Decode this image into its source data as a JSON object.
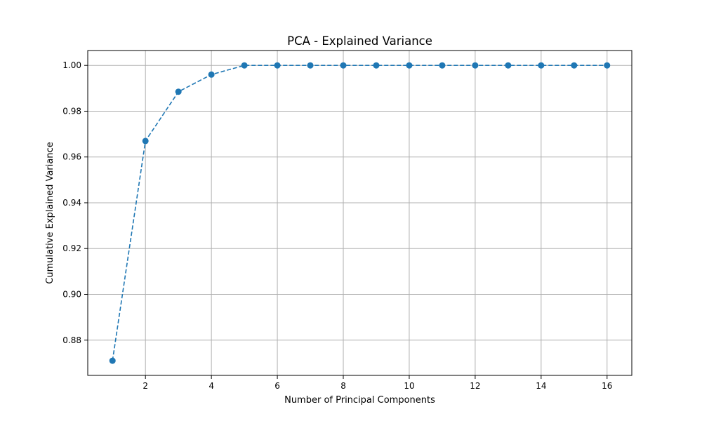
{
  "chart_data": {
    "type": "line",
    "title": "PCA - Explained Variance",
    "xlabel": "Number of Principal Components",
    "ylabel": "Cumulative Explained Variance",
    "x": [
      1,
      2,
      3,
      4,
      5,
      6,
      7,
      8,
      9,
      10,
      11,
      12,
      13,
      14,
      15,
      16
    ],
    "series": [
      {
        "values": [
          0.871,
          0.967,
          0.9885,
          0.996,
          1.0,
          1.0,
          1.0,
          1.0,
          1.0,
          1.0,
          1.0,
          1.0,
          1.0,
          1.0,
          1.0,
          1.0
        ],
        "color": "#1f77b4",
        "line_style": "dashed",
        "marker": "circle"
      }
    ],
    "xlim": [
      0.25,
      16.75
    ],
    "ylim": [
      0.8646,
      1.0065
    ],
    "xticks": [
      2,
      4,
      6,
      8,
      10,
      12,
      14,
      16
    ],
    "xtick_labels": [
      "2",
      "4",
      "6",
      "8",
      "10",
      "12",
      "14",
      "16"
    ],
    "yticks": [
      0.88,
      0.9,
      0.92,
      0.94,
      0.96,
      0.98,
      1.0
    ],
    "ytick_labels": [
      "0.88",
      "0.90",
      "0.92",
      "0.94",
      "0.96",
      "0.98",
      "1.00"
    ],
    "grid": true,
    "grid_color": "#b0b0b0"
  }
}
